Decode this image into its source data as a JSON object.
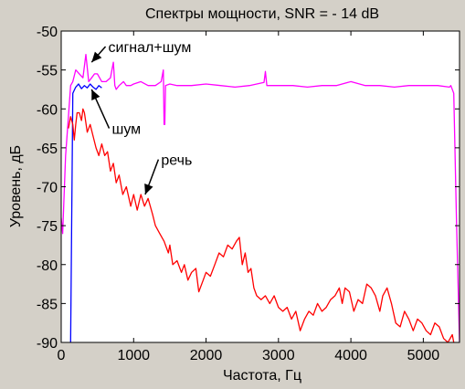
{
  "chart_data": {
    "type": "line",
    "title": "Спектры мощности, SNR = - 14 dB",
    "xlabel": "Частота, Гц",
    "ylabel": "Уровень, дБ",
    "xlim": [
      0,
      5500
    ],
    "ylim": [
      -90,
      -50
    ],
    "xticks": [
      0,
      1000,
      2000,
      3000,
      4000,
      5000
    ],
    "yticks": [
      -90,
      -85,
      -80,
      -75,
      -70,
      -65,
      -60,
      -55,
      -50
    ],
    "grid": false,
    "legend": "none",
    "background": "#ffffff",
    "figure_background": "#d4d0c8",
    "series": [
      {
        "color": "#ff00ff",
        "x": [
          0,
          20,
          60,
          100,
          130,
          160,
          200,
          250,
          300,
          340,
          380,
          420,
          460,
          500,
          560,
          620,
          680,
          720,
          740,
          760,
          800,
          860,
          900,
          960,
          1000,
          1100,
          1200,
          1300,
          1380,
          1410,
          1420,
          1430,
          1440,
          1500,
          1600,
          1800,
          2000,
          2200,
          2400,
          2600,
          2800,
          2820,
          2840,
          3000,
          3200,
          3400,
          3600,
          3800,
          4000,
          4200,
          4400,
          4600,
          4800,
          5000,
          5200,
          5360,
          5380,
          5420,
          5460,
          5500
        ],
        "y": [
          -74,
          -76,
          -66,
          -61,
          -57,
          -56.5,
          -55,
          -55.5,
          -56,
          -53,
          -56.5,
          -56,
          -55.5,
          -55.5,
          -56.5,
          -56.5,
          -56,
          -54,
          -57,
          -57.5,
          -57,
          -56.5,
          -57,
          -57,
          -56.8,
          -56.5,
          -57,
          -57,
          -56.5,
          -55,
          -62,
          -62,
          -57,
          -56.8,
          -57,
          -57,
          -56.8,
          -57,
          -57.2,
          -57,
          -56.6,
          -55.2,
          -57,
          -57,
          -57,
          -57.2,
          -57,
          -57,
          -56.5,
          -57,
          -57,
          -57.2,
          -57,
          -57,
          -57,
          -57.2,
          -57,
          -58,
          -75,
          -90
        ]
      },
      {
        "color": "#0000ff",
        "x": [
          130,
          160,
          200,
          240,
          280,
          320,
          360,
          400,
          440,
          480,
          520,
          560
        ],
        "y": [
          -90,
          -58,
          -57.2,
          -56.8,
          -57.4,
          -57,
          -57.3,
          -56.8,
          -57.2,
          -57.5,
          -57,
          -57.3
        ]
      },
      {
        "color": "#ff0000",
        "x": [
          100,
          130,
          160,
          180,
          200,
          220,
          250,
          280,
          300,
          320,
          360,
          400,
          440,
          480,
          520,
          560,
          600,
          640,
          680,
          720,
          760,
          800,
          850,
          900,
          960,
          1000,
          1050,
          1100,
          1150,
          1200,
          1260,
          1300,
          1360,
          1420,
          1480,
          1500,
          1540,
          1600,
          1660,
          1700,
          1750,
          1800,
          1860,
          1900,
          1960,
          2000,
          2060,
          2120,
          2180,
          2240,
          2300,
          2360,
          2420,
          2460,
          2500,
          2540,
          2580,
          2620,
          2660,
          2700,
          2760,
          2820,
          2880,
          2940,
          3000,
          3060,
          3120,
          3180,
          3240,
          3300,
          3360,
          3420,
          3480,
          3540,
          3600,
          3660,
          3720,
          3780,
          3840,
          3880,
          3920,
          3980,
          4040,
          4100,
          4160,
          4220,
          4280,
          4340,
          4400,
          4440,
          4500,
          4560,
          4620,
          4680,
          4740,
          4800,
          4860,
          4920,
          4980,
          5040,
          5100,
          5160,
          5220,
          5280,
          5340,
          5400,
          5420
        ],
        "y": [
          -62.5,
          -61,
          -62,
          -64,
          -62,
          -60.5,
          -60.5,
          -61.5,
          -60,
          -60.5,
          -63,
          -62,
          -63.5,
          -65,
          -66,
          -64.5,
          -66,
          -65.5,
          -68,
          -67,
          -69.5,
          -68.5,
          -71,
          -70,
          -72.5,
          -71,
          -73,
          -71,
          -72.5,
          -71.5,
          -73.5,
          -75,
          -76,
          -77,
          -78.5,
          -77.5,
          -80,
          -79.5,
          -81,
          -80,
          -82,
          -81,
          -80.5,
          -83.5,
          -82,
          -81,
          -81.5,
          -80,
          -78.5,
          -79,
          -77.5,
          -78,
          -77,
          -76.5,
          -80,
          -78.5,
          -81,
          -80.5,
          -83,
          -84,
          -84.5,
          -84,
          -85,
          -84,
          -85.5,
          -86,
          -85.5,
          -87,
          -86,
          -88.5,
          -87,
          -86,
          -86.5,
          -85,
          -86,
          -85.5,
          -84.5,
          -84,
          -83,
          -85,
          -83,
          -83.5,
          -86,
          -84.5,
          -85,
          -82.5,
          -83,
          -84,
          -86,
          -84,
          -83,
          -85,
          -87.5,
          -88,
          -86,
          -87,
          -88.5,
          -87,
          -87.5,
          -88.5,
          -89,
          -87.5,
          -88,
          -89.5,
          -90,
          -89,
          -90
        ]
      }
    ],
    "annotations": [
      {
        "text": "сигнал+шум",
        "x": 650,
        "y": -52,
        "arrow_to": [
          420,
          -54
        ]
      },
      {
        "text": "шум",
        "x": 700,
        "y": -62.5,
        "arrow_to": [
          420,
          -57.5
        ]
      },
      {
        "text": "речь",
        "x": 1380,
        "y": -66.5,
        "arrow_to": [
          1160,
          -71
        ]
      }
    ]
  }
}
